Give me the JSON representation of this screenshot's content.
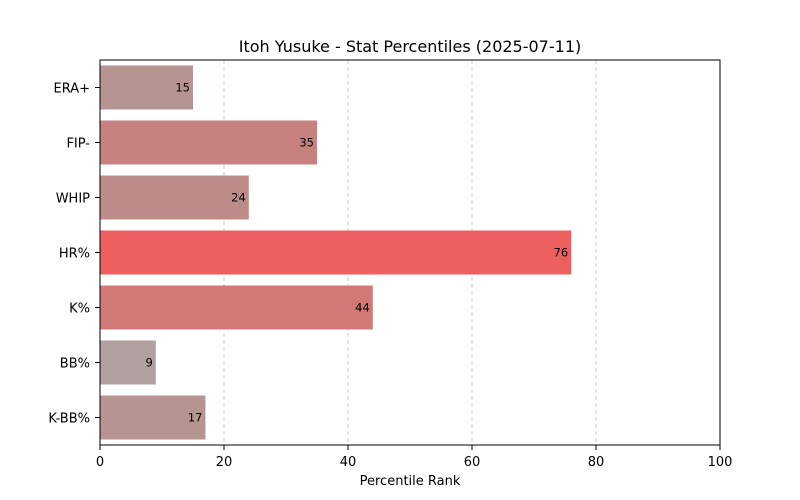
{
  "chart_data": {
    "type": "bar",
    "orientation": "horizontal",
    "title": "Itoh Yusuke - Stat Percentiles (2025-07-11)",
    "xlabel": "Percentile Rank",
    "ylabel": "",
    "xlim": [
      0,
      100
    ],
    "xticks": [
      0,
      20,
      40,
      60,
      80,
      100
    ],
    "grid": "x-dashed",
    "categories": [
      "ERA+",
      "FIP-",
      "WHIP",
      "HR%",
      "K%",
      "BB%",
      "K-BB%"
    ],
    "values": [
      15,
      35,
      24,
      76,
      44,
      9,
      17
    ],
    "colors": [
      "#b59491",
      "#c78280",
      "#bd8c89",
      "#ee5f5f",
      "#d17976",
      "#b0a0a0",
      "#b59491"
    ]
  }
}
